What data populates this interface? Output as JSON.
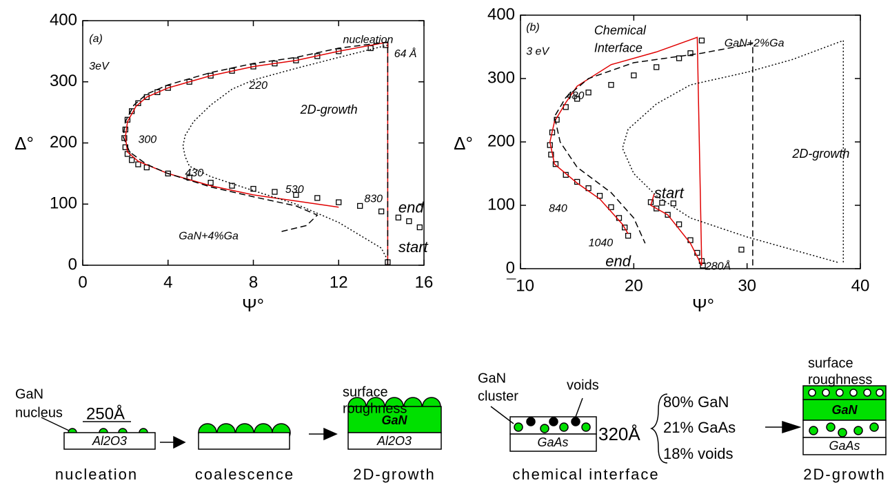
{
  "chart_data": [
    {
      "type": "line",
      "y_label": "Δ°",
      "x_label": "Ψ°",
      "xlim": [
        0,
        16
      ],
      "xticks": [
        0,
        4,
        8,
        12,
        16
      ],
      "ylim": [
        0,
        400
      ],
      "yticks": [
        0,
        100,
        200,
        300,
        400
      ],
      "series": [
        {
          "color": "#000000",
          "style": "markers",
          "x": [
            14.3,
            14.2,
            13.5,
            12,
            11,
            10,
            9,
            8,
            7,
            6,
            5,
            4,
            3.5,
            3,
            2.6,
            2.3,
            2.1,
            2,
            1.95,
            2,
            2.1,
            2.3,
            2.6,
            3,
            4,
            5,
            6,
            7,
            8,
            9,
            10,
            11,
            12,
            13,
            14,
            14.8,
            15.3,
            15.8
          ],
          "values": [
            5,
            360,
            355,
            350,
            342,
            335,
            330,
            325,
            318,
            310,
            300,
            290,
            283,
            275,
            265,
            252,
            238,
            222,
            208,
            193,
            182,
            172,
            165,
            160,
            150,
            143,
            135,
            130,
            125,
            120,
            115,
            110,
            103,
            97,
            88,
            78,
            72,
            62
          ]
        },
        {
          "color": "#e00000",
          "style": "solid",
          "x": [
            14.3,
            14.3,
            12,
            10,
            8,
            6,
            4,
            3,
            2.5,
            2.1,
            2,
            2.1,
            2.6,
            4,
            6,
            8,
            10,
            12
          ],
          "values": [
            0,
            365,
            350,
            335,
            325,
            310,
            290,
            275,
            260,
            235,
            210,
            185,
            170,
            150,
            130,
            115,
            105,
            95
          ]
        },
        {
          "color": "#000000",
          "style": "dashed",
          "x": [
            14.3,
            14.3,
            12,
            10,
            8,
            6,
            4,
            3,
            2.4,
            2,
            1.9,
            2.2,
            3,
            4,
            6,
            8,
            10,
            11,
            10.5,
            9.3
          ],
          "values": [
            0,
            365,
            355,
            340,
            330,
            315,
            295,
            280,
            262,
            235,
            210,
            185,
            165,
            150,
            128,
            112,
            97,
            82,
            65,
            55
          ]
        },
        {
          "color": "#000000",
          "style": "dotted",
          "x": [
            14.3,
            12,
            10,
            8,
            7,
            6,
            5.2,
            4.8,
            4.7,
            4.8,
            5,
            6,
            8,
            10,
            12,
            14,
            14.3
          ],
          "values": [
            360,
            340,
            322,
            303,
            288,
            262,
            235,
            212,
            195,
            178,
            162,
            145,
            122,
            100,
            70,
            28,
            8
          ]
        }
      ],
      "annotations": [
        {
          "text": "(a)"
        },
        {
          "text": "3eV"
        },
        {
          "text": "nucleation",
          "color": "#e00000"
        },
        {
          "text": "64 Å"
        },
        {
          "text": "220"
        },
        {
          "text": "2D-growth"
        },
        {
          "text": "300"
        },
        {
          "text": "430"
        },
        {
          "text": "530"
        },
        {
          "text": "830"
        },
        {
          "text": "end"
        },
        {
          "text": "GaN+4%Ga"
        },
        {
          "text": "start"
        }
      ]
    },
    {
      "type": "line",
      "y_label": "Δ°",
      "x_label": "Ψ°",
      "xlim": [
        10,
        40
      ],
      "xticks": [
        {
          "value": 10,
          "label": "¯10"
        },
        20,
        30,
        40
      ],
      "ylim": [
        0,
        400
      ],
      "yticks": [
        0,
        100,
        200,
        300,
        400
      ],
      "series": [
        {
          "color": "#000000",
          "style": "markers",
          "x": [
            21.5,
            22.5,
            23.5,
            22,
            23,
            24,
            25,
            25.6,
            26,
            26.1,
            26,
            25,
            24,
            22,
            20,
            18,
            16,
            15,
            14,
            13.2,
            12.8,
            12.6,
            12.7,
            13.1,
            14,
            15,
            16,
            17,
            18,
            18.7,
            19.2,
            19.5,
            29.5
          ],
          "values": [
            105,
            104,
            103,
            95,
            85,
            70,
            45,
            25,
            12,
            5,
            360,
            340,
            332,
            318,
            305,
            290,
            278,
            268,
            255,
            235,
            215,
            195,
            180,
            165,
            148,
            137,
            127,
            115,
            97,
            80,
            65,
            52,
            30
          ]
        },
        {
          "color": "#e00000",
          "style": "solid",
          "x": [
            21.8,
            21.5,
            23,
            25,
            26,
            25.6,
            22,
            18,
            15,
            14,
            13,
            12.6,
            13,
            15,
            17,
            19,
            19.5
          ],
          "values": [
            118,
            100,
            85,
            40,
            5,
            365,
            342,
            322,
            288,
            262,
            232,
            200,
            165,
            135,
            110,
            70,
            55
          ]
        },
        {
          "color": "#000000",
          "style": "dashed",
          "x": [
            30.5,
            30.5,
            26,
            20,
            16,
            14,
            13,
            13.5,
            15,
            18,
            20,
            21
          ],
          "values": [
            5,
            355,
            340,
            325,
            300,
            270,
            240,
            200,
            160,
            120,
            80,
            40
          ]
        },
        {
          "color": "#000000",
          "style": "dotted",
          "x": [
            38.5,
            38.5,
            34,
            30,
            25,
            22,
            19.5,
            19,
            20,
            22,
            25,
            30,
            35,
            38
          ],
          "values": [
            10,
            360,
            330,
            310,
            290,
            260,
            220,
            190,
            150,
            115,
            80,
            50,
            25,
            10
          ]
        }
      ],
      "annotations": [
        {
          "text": "(b)"
        },
        {
          "text": "3 eV"
        },
        {
          "text": "Chemical",
          "color": "#e00000"
        },
        {
          "text": "Interface",
          "color": "#e00000"
        },
        {
          "text": "GaN+2%Ga"
        },
        {
          "text": "480"
        },
        {
          "text": "2D-growth"
        },
        {
          "text": "start"
        },
        {
          "text": "840"
        },
        {
          "text": "1040"
        },
        {
          "text": "end"
        },
        {
          "text": "280Å"
        }
      ]
    }
  ],
  "diagrams": {
    "left": {
      "gan": "GaN",
      "nucleus": "nucleus",
      "thickness": "250Å",
      "substrate": "Al2O3",
      "nucleation": "nucleation",
      "coalescence": "coalescence",
      "surface": "surface",
      "roughness": "roughness",
      "film": "GaN",
      "substrate2": "Al2O3",
      "growth": "2D-growth"
    },
    "right": {
      "gan": "GaN",
      "cluster": "cluster",
      "voids": "voids",
      "substrate": "GaAs",
      "thickness": "320Å",
      "c1": "80% GaN",
      "c2": "21% GaAs",
      "c3": "18% voids",
      "interface": "chemical interface",
      "surface": "surface",
      "roughness": "roughness",
      "film": "GaN",
      "substrate2": "GaAs",
      "growth": "2D-growth"
    }
  }
}
